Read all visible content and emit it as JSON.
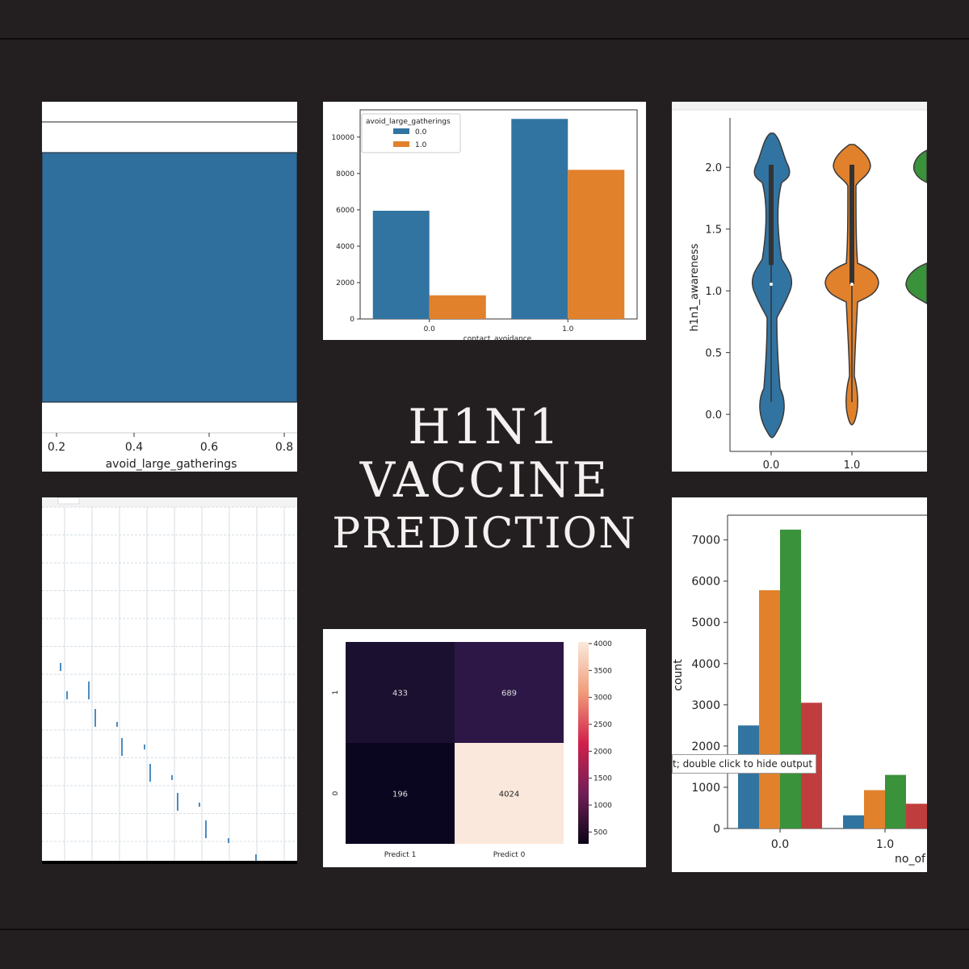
{
  "title": {
    "line1": "H1N1",
    "line2": "VACCINE",
    "line3": "PREDICTION"
  },
  "tooltip_text": "t; double click to hide output",
  "chart_data": [
    {
      "id": "gatherings-box",
      "type": "area",
      "xlabel": "avoid_large_gatherings",
      "x_ticks": [
        "0.2",
        "0.4",
        "0.6",
        "0.8"
      ],
      "color": "#2e6f9e"
    },
    {
      "id": "contact-avoidance-bar",
      "type": "bar",
      "xlabel": "contact_avoidance",
      "categories": [
        "0.0",
        "1.0"
      ],
      "legend_title": "avoid_large_gatherings",
      "ylim": [
        0,
        11500
      ],
      "y_ticks": [
        0,
        2000,
        4000,
        6000,
        8000,
        10000
      ],
      "series": [
        {
          "name": "0.0",
          "color": "#3274a1",
          "values": [
            5950,
            11000
          ]
        },
        {
          "name": "1.0",
          "color": "#e1812c",
          "values": [
            1300,
            8200
          ]
        }
      ]
    },
    {
      "id": "h1n1-awareness-violin",
      "type": "violin",
      "ylabel": "h1n1_awareness",
      "x_ticks": [
        "0.0",
        "1.0"
      ],
      "y_ticks": [
        "0.0",
        "0.5",
        "1.0",
        "1.5",
        "2.0"
      ],
      "ylim": [
        -0.3,
        2.4
      ],
      "colors": [
        "#3274a1",
        "#e1812c",
        "#3a923a"
      ]
    },
    {
      "id": "scatter-matrix",
      "type": "scatter",
      "color": "#4c8cbf"
    },
    {
      "id": "confusion-matrix",
      "type": "heatmap",
      "x_ticks": [
        "Predict 1",
        "Predict 0"
      ],
      "y_ticks": [
        "1",
        "0"
      ],
      "values": [
        [
          433,
          689
        ],
        [
          196,
          4024
        ]
      ],
      "colorbar_ticks": [
        4000,
        3500,
        3000,
        2500,
        2000,
        1500,
        1000,
        500
      ]
    },
    {
      "id": "count-bar",
      "type": "bar",
      "ylabel": "count",
      "xlabel": "no_of",
      "categories": [
        "0.0",
        "1.0"
      ],
      "ylim": [
        0,
        7600
      ],
      "y_ticks": [
        0,
        1000,
        2000,
        3000,
        4000,
        5000,
        6000,
        7000
      ],
      "series": [
        {
          "color": "#3274a1",
          "values": [
            2500,
            320
          ]
        },
        {
          "color": "#e1812c",
          "values": [
            5780,
            930
          ]
        },
        {
          "color": "#3a923a",
          "values": [
            7250,
            1300
          ]
        },
        {
          "color": "#c03d3e",
          "values": [
            3050,
            600
          ]
        }
      ]
    }
  ]
}
